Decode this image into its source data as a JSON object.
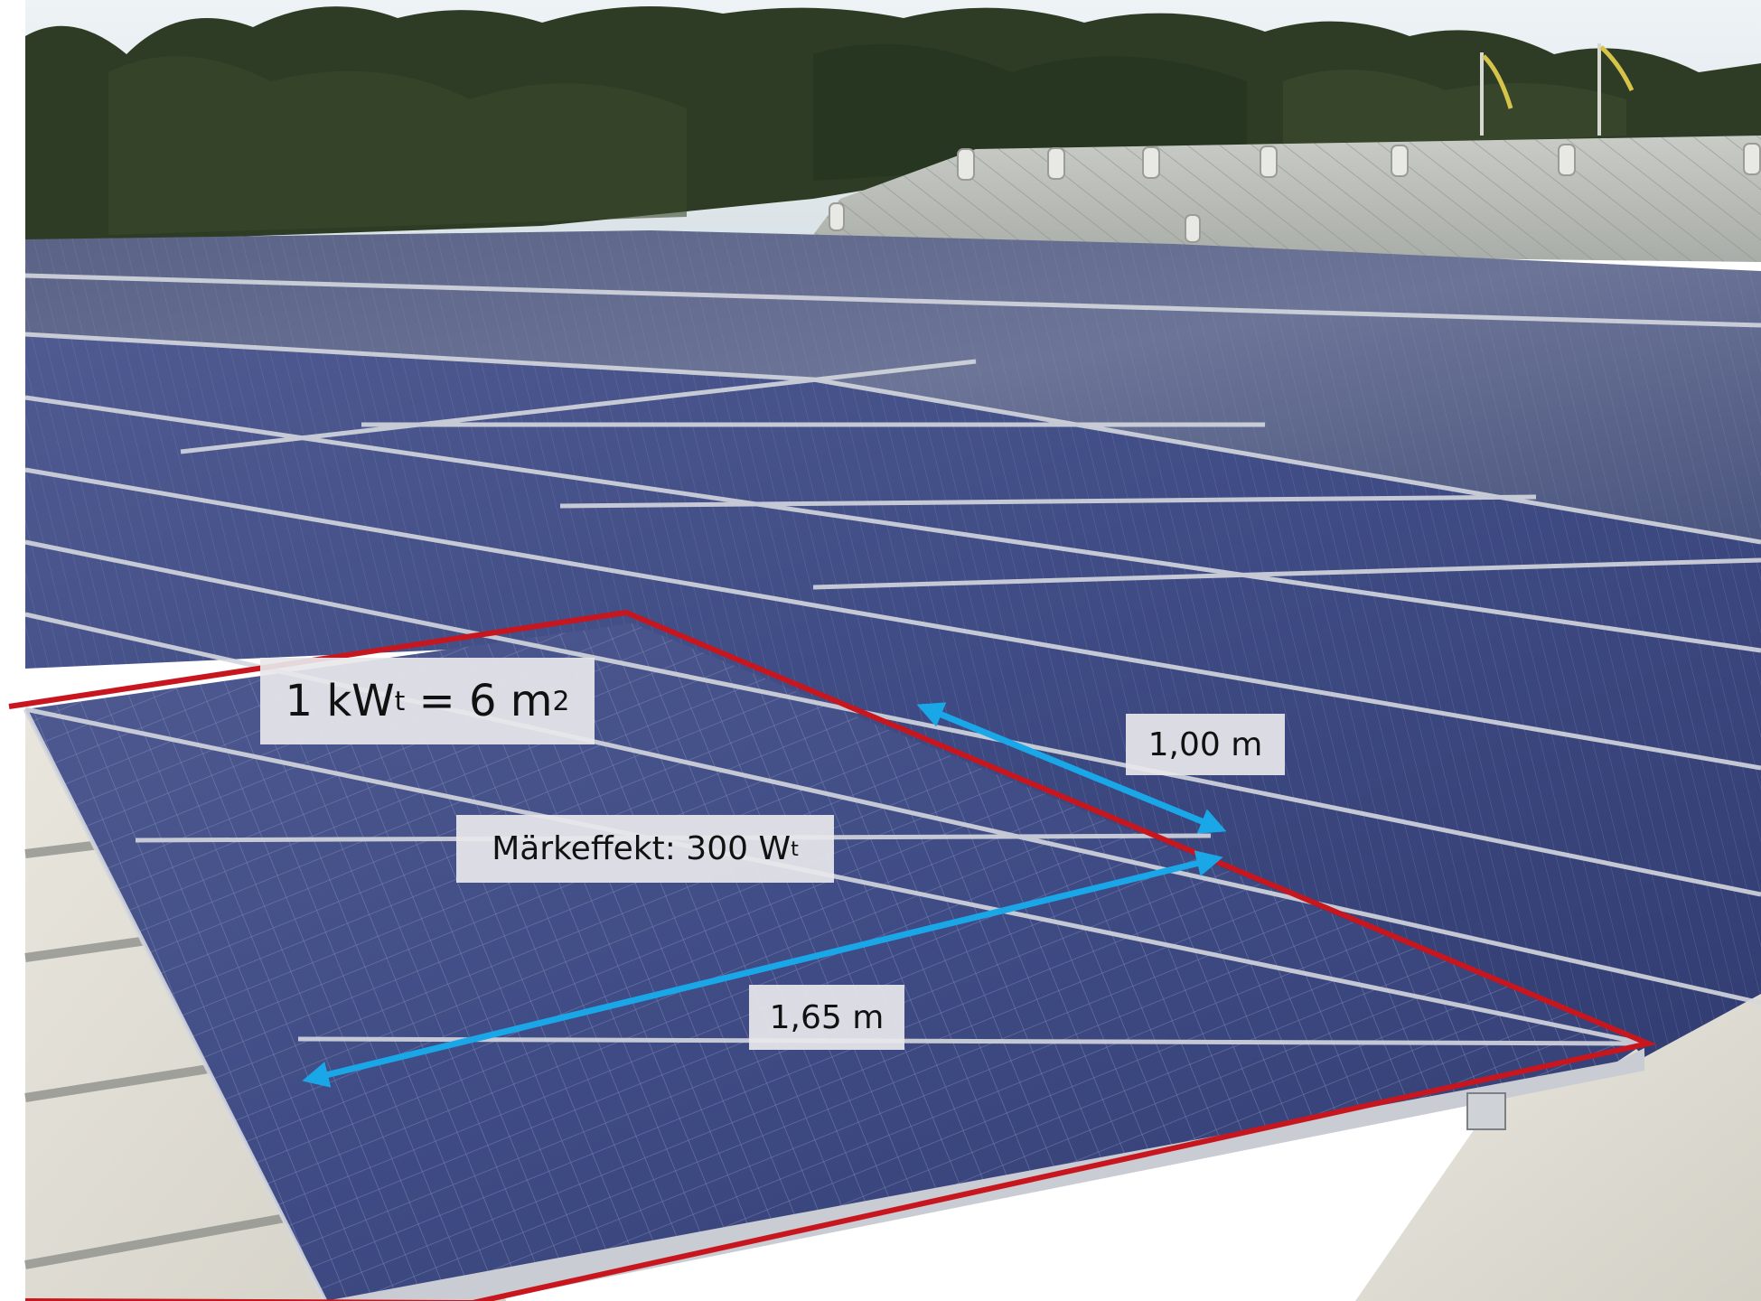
{
  "annotations": {
    "area": {
      "prefix": "1 kW",
      "sub": "t",
      "middle": " = 6 m",
      "sup": "2"
    },
    "rated_power": {
      "prefix": "Märkeffekt: 300 W",
      "sub": "t"
    },
    "panel_width": "1,00 m",
    "panel_length": "1,65 m"
  },
  "colors": {
    "outline": "#c8161e",
    "dimension_arrow": "#1aa7e8",
    "panel_blue": "#3f4a7e",
    "roof": "#dedad0",
    "sky": "#e9eef2",
    "trees": "#2b3a22"
  }
}
